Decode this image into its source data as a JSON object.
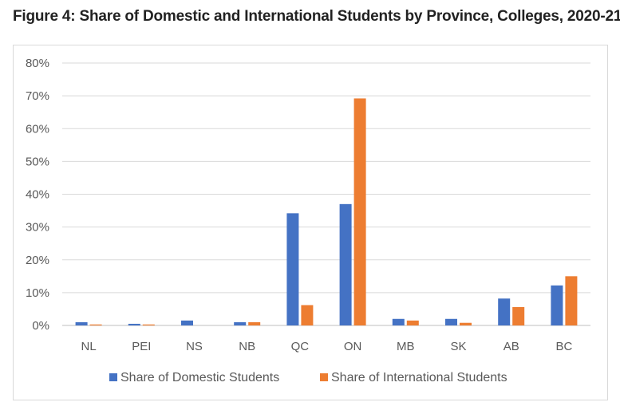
{
  "figure": {
    "title": "Figure 4: Share of Domestic and International Students by Province, Colleges, 2020-21"
  },
  "chart_data": {
    "type": "bar",
    "categories": [
      "NL",
      "PEI",
      "NS",
      "NB",
      "QC",
      "ON",
      "MB",
      "SK",
      "AB",
      "BC"
    ],
    "series": [
      {
        "name": "Share of Domestic Students",
        "color": "#4472c4",
        "values": [
          1.0,
          0.5,
          1.5,
          1.0,
          34.2,
          37.0,
          2.0,
          2.0,
          8.2,
          12.2
        ]
      },
      {
        "name": "Share of International Students",
        "color": "#ed7d31",
        "values": [
          0.3,
          0.3,
          0.0,
          1.0,
          6.2,
          69.2,
          1.5,
          0.8,
          5.6,
          15.0
        ]
      }
    ],
    "yticks": [
      "0%",
      "10%",
      "20%",
      "30%",
      "40%",
      "50%",
      "60%",
      "70%",
      "80%"
    ],
    "ylim": [
      0,
      80
    ],
    "grid": true,
    "legend": "bottom"
  }
}
